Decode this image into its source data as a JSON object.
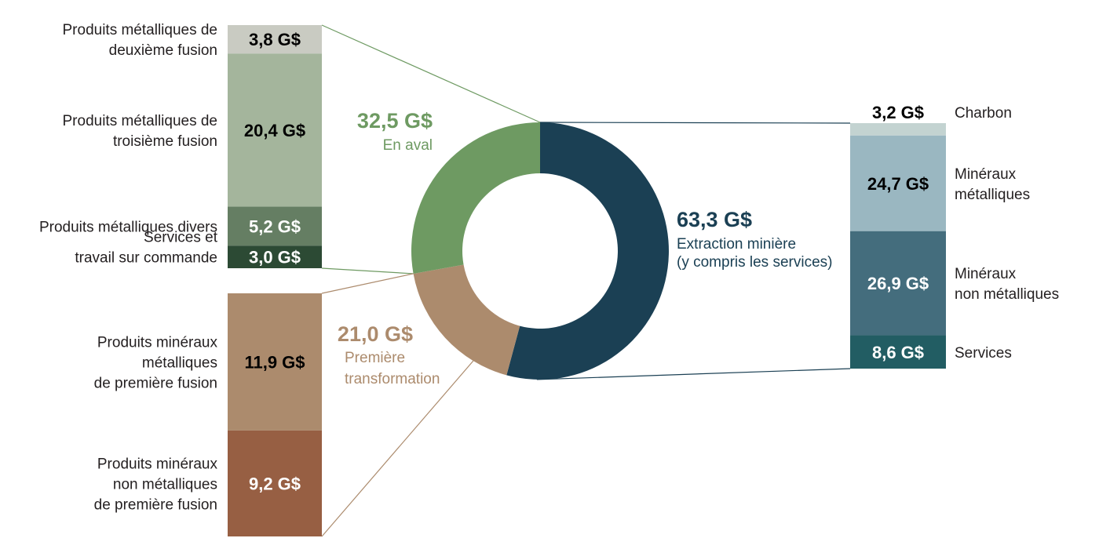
{
  "chart_data": {
    "type": "pie",
    "variant": "donut with stacked breakdown bars",
    "unit": "G$",
    "slices": [
      {
        "key": "extraction",
        "label": "Extraction minière (y compris les services)",
        "label_lines": [
          "Extraction minière",
          "(y compris les services)"
        ],
        "value": 63.3,
        "value_label": "63,3 G$",
        "color": "#1b4054"
      },
      {
        "key": "premiere",
        "label": "Première transformation",
        "label_lines": [
          "Première",
          "transformation"
        ],
        "value": 21.0,
        "value_label": "21,0 G$",
        "color": "#ac8b6d"
      },
      {
        "key": "aval",
        "label": "En aval",
        "label_lines": [
          "En aval"
        ],
        "value": 32.5,
        "value_label": "32,5 G$",
        "color": "#6e9a62"
      }
    ],
    "breakdowns": {
      "aval": [
        {
          "label_lines": [
            "Produits métalliques de",
            "deuxième fusion"
          ],
          "value": 3.8,
          "value_label": "3,8 G$",
          "color": "#c9cbc2",
          "text_color": "#000000"
        },
        {
          "label_lines": [
            "Produits métalliques de",
            "troisième fusion"
          ],
          "value": 20.4,
          "value_label": "20,4 G$",
          "color": "#a4b59c",
          "text_color": "#000000"
        },
        {
          "label_lines": [
            "Produits métalliques divers"
          ],
          "value": 5.2,
          "value_label": "5,2 G$",
          "color": "#657e63",
          "text_color": "#ffffff"
        },
        {
          "label_lines": [
            "Services et",
            "travail sur commande"
          ],
          "value": 3.0,
          "value_label": "3,0 G$",
          "color": "#2c4a34",
          "text_color": "#ffffff"
        }
      ],
      "premiere": [
        {
          "label_lines": [
            "Produits minéraux",
            "métalliques",
            "de première fusion"
          ],
          "value": 11.9,
          "value_label": "11,9 G$",
          "color": "#ac8b6d",
          "text_color": "#000000"
        },
        {
          "label_lines": [
            "Produits minéraux",
            "non métalliques",
            "de première fusion"
          ],
          "value": 9.2,
          "value_label": "9,2 G$",
          "color": "#975f43",
          "text_color": "#ffffff"
        }
      ],
      "extraction": [
        {
          "label_lines": [
            "Charbon"
          ],
          "value": 3.2,
          "value_label": "3,2 G$",
          "color": "#c3d3d1",
          "text_color": "#000000"
        },
        {
          "label_lines": [
            "Minéraux",
            "métalliques"
          ],
          "value": 24.7,
          "value_label": "24,7 G$",
          "color": "#9ab7c1",
          "text_color": "#000000"
        },
        {
          "label_lines": [
            "Minéraux",
            "non métalliques"
          ],
          "value": 26.9,
          "value_label": "26,9 G$",
          "color": "#446d7d",
          "text_color": "#ffffff"
        },
        {
          "label_lines": [
            "Services"
          ],
          "value": 8.6,
          "value_label": "8,6 G$",
          "color": "#225d63",
          "text_color": "#ffffff"
        }
      ]
    }
  }
}
